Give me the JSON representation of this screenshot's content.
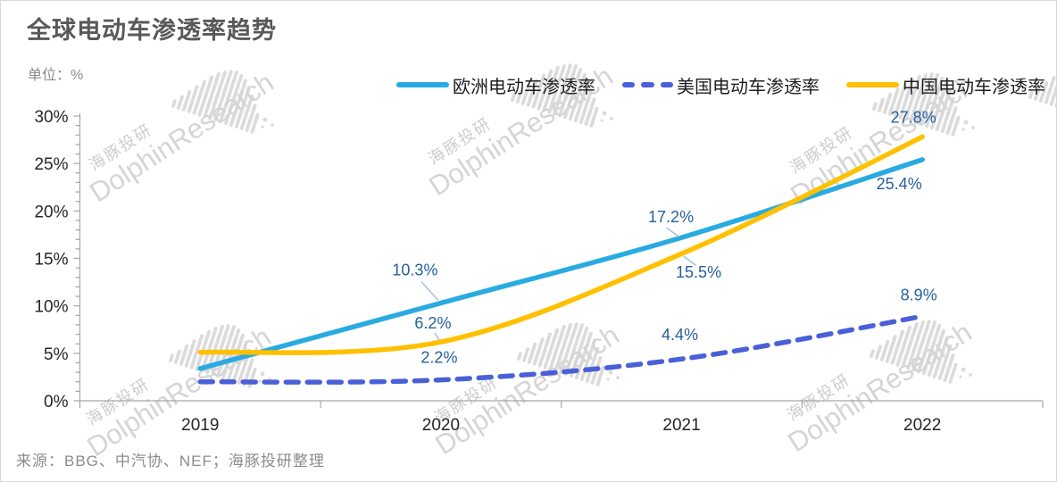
{
  "title": "全球电动车渗透率趋势",
  "unit_label": "单位：%",
  "source_note": "来源：BBG、中汽协、NEF；海豚投研整理",
  "watermark": {
    "cn": "海豚投研",
    "en": "DolphinResearch"
  },
  "chart_data": {
    "type": "line",
    "title": "全球电动车渗透率趋势",
    "xlabel": "",
    "ylabel": "%",
    "x": [
      "2019",
      "2020",
      "2021",
      "2022"
    ],
    "series": [
      {
        "name": "欧洲电动车渗透率",
        "color": "#29ABE2",
        "line_style": "solid",
        "values": [
          3.4,
          10.3,
          17.2,
          25.4
        ],
        "point_labels": [
          "",
          "10.3%",
          "17.2%",
          "25.4%"
        ]
      },
      {
        "name": "美国电动车渗透率",
        "color": "#4A60D8",
        "line_style": "dashed",
        "values": [
          2.0,
          2.2,
          4.4,
          8.9
        ],
        "point_labels": [
          "",
          "2.2%",
          "4.4%",
          "8.9%"
        ]
      },
      {
        "name": "中国电动车渗透率",
        "color": "#FFC000",
        "line_style": "solid",
        "values": [
          5.1,
          6.2,
          15.5,
          27.8
        ],
        "point_labels": [
          "",
          "6.2%",
          "15.5%",
          "27.8%"
        ]
      }
    ],
    "ylim": [
      0,
      30
    ],
    "ytick_step": 5,
    "yticks": [
      "0%",
      "5%",
      "10%",
      "15%",
      "20%",
      "25%",
      "30%"
    ],
    "minor_ytick_step": 1,
    "grid": false,
    "legend_position": "top",
    "smoothed": true,
    "label_color": "#26609C",
    "leader_line_color": "#A9C2E2",
    "axis_color": "#A6A6A6",
    "axis_text_color": "#262626"
  }
}
